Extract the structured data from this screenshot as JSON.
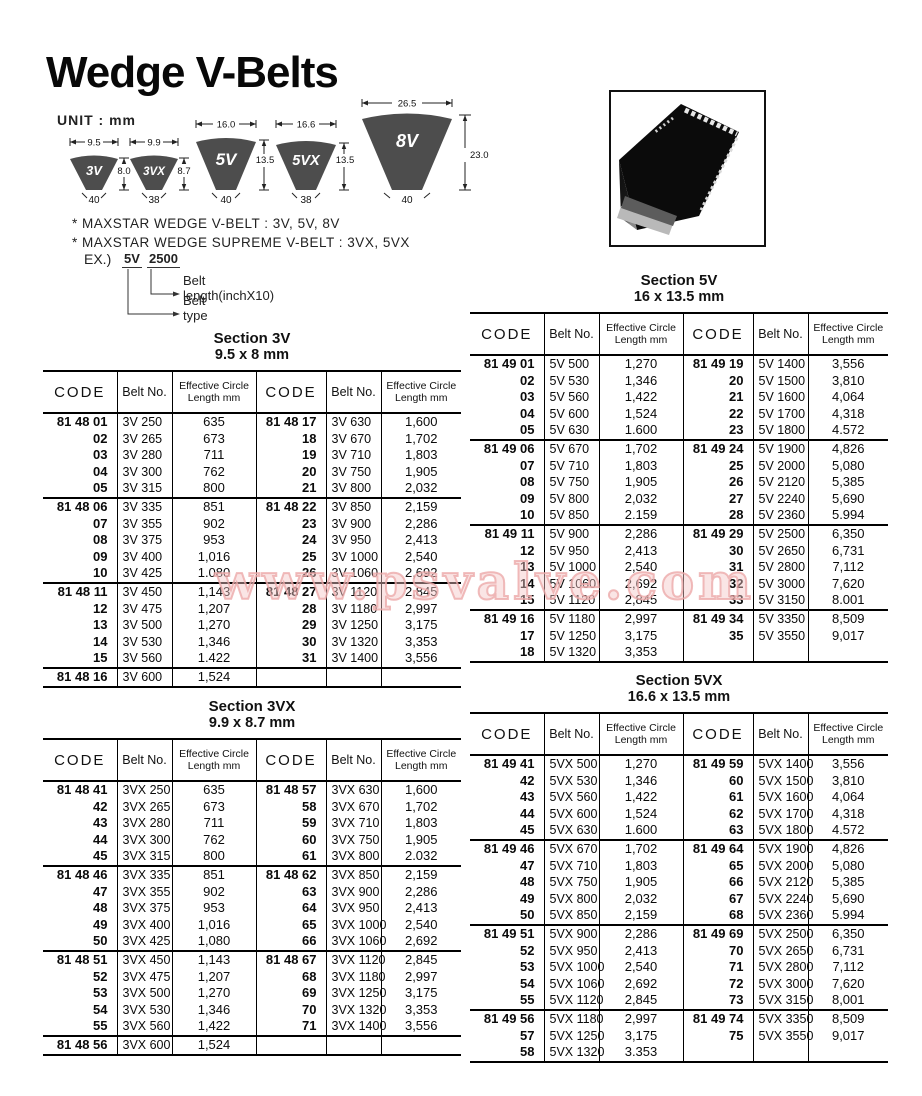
{
  "page": {
    "title": "Wedge V-Belts",
    "unit_label": "UNIT : mm",
    "watermark": "www.psvalve.com"
  },
  "diagram": {
    "belts": [
      {
        "label": "3V",
        "top_width": "9.5",
        "height": "8.0",
        "angle": "40"
      },
      {
        "label": "3VX",
        "top_width": "9.9",
        "height": "8.7",
        "angle": "38"
      },
      {
        "label": "5V",
        "top_width": "16.0",
        "height": "13.5",
        "angle": "40"
      },
      {
        "label": "5VX",
        "top_width": "16.6",
        "height": "13.5",
        "angle": "38"
      },
      {
        "label": "8V",
        "top_width": "26.5",
        "height": "23.0",
        "angle": "40"
      }
    ]
  },
  "notes": [
    "* MAXSTAR WEDGE V-BELT : 3V, 5V, 8V",
    "* MAXSTAR WEDGE SUPREME V-BELT : 3VX, 5VX"
  ],
  "example": {
    "prefix": "EX.)",
    "belt_type": "5V",
    "belt_length": "2500",
    "length_label": "Belt length(inchX10)",
    "type_label": "Belt type"
  },
  "tables": [
    {
      "id": "3v",
      "title": "Section 3V",
      "subtitle": "9.5 x 8 mm",
      "headers": [
        "CODE",
        "Belt No.",
        "Effective Circle Length mm",
        "CODE",
        "Belt No.",
        "Effective Circle Length mm"
      ],
      "groups": [
        [
          [
            "81 48 01",
            "3V 250",
            "635",
            "81 48 17",
            "3V 630",
            "1,600"
          ],
          [
            "02",
            "3V 265",
            "673",
            "18",
            "3V 670",
            "1,702"
          ],
          [
            "03",
            "3V 280",
            "711",
            "19",
            "3V 710",
            "1,803"
          ],
          [
            "04",
            "3V 300",
            "762",
            "20",
            "3V 750",
            "1,905"
          ],
          [
            "05",
            "3V 315",
            "800",
            "21",
            "3V 800",
            "2,032"
          ]
        ],
        [
          [
            "81 48 06",
            "3V 335",
            "851",
            "81 48 22",
            "3V 850",
            "2,159"
          ],
          [
            "07",
            "3V 355",
            "902",
            "23",
            "3V 900",
            "2,286"
          ],
          [
            "08",
            "3V 375",
            "953",
            "24",
            "3V 950",
            "2,413"
          ],
          [
            "09",
            "3V 400",
            "1,016",
            "25",
            "3V 1000",
            "2,540"
          ],
          [
            "10",
            "3V 425",
            "1.080",
            "26",
            "3V 1060",
            "2,692"
          ]
        ],
        [
          [
            "81 48 11",
            "3V 450",
            "1,143",
            "81 48 27",
            "3V 1120",
            "2,845"
          ],
          [
            "12",
            "3V 475",
            "1,207",
            "28",
            "3V 1180",
            "2,997"
          ],
          [
            "13",
            "3V 500",
            "1,270",
            "29",
            "3V 1250",
            "3,175"
          ],
          [
            "14",
            "3V 530",
            "1,346",
            "30",
            "3V 1320",
            "3,353"
          ],
          [
            "15",
            "3V 560",
            "1.422",
            "31",
            "3V 1400",
            "3,556"
          ]
        ],
        [
          [
            "81 48 16",
            "3V 600",
            "1,524",
            "",
            "",
            ""
          ]
        ]
      ]
    },
    {
      "id": "5v",
      "title": "Section 5V",
      "subtitle": "16 x 13.5 mm",
      "headers": [
        "CODE",
        "Belt No.",
        "Effective Circle Length mm",
        "CODE",
        "Belt No.",
        "Effective Circle Length mm"
      ],
      "groups": [
        [
          [
            "81 49 01",
            "5V 500",
            "1,270",
            "81 49 19",
            "5V 1400",
            "3,556"
          ],
          [
            "02",
            "5V 530",
            "1,346",
            "20",
            "5V 1500",
            "3,810"
          ],
          [
            "03",
            "5V 560",
            "1,422",
            "21",
            "5V 1600",
            "4,064"
          ],
          [
            "04",
            "5V 600",
            "1,524",
            "22",
            "5V 1700",
            "4,318"
          ],
          [
            "05",
            "5V 630",
            "1.600",
            "23",
            "5V 1800",
            "4.572"
          ]
        ],
        [
          [
            "81 49 06",
            "5V 670",
            "1,702",
            "81 49 24",
            "5V 1900",
            "4,826"
          ],
          [
            "07",
            "5V 710",
            "1,803",
            "25",
            "5V 2000",
            "5,080"
          ],
          [
            "08",
            "5V 750",
            "1,905",
            "26",
            "5V 2120",
            "5,385"
          ],
          [
            "09",
            "5V 800",
            "2,032",
            "27",
            "5V 2240",
            "5,690"
          ],
          [
            "10",
            "5V 850",
            "2.159",
            "28",
            "5V 2360",
            "5.994"
          ]
        ],
        [
          [
            "81 49 11",
            "5V 900",
            "2,286",
            "81 49 29",
            "5V 2500",
            "6,350"
          ],
          [
            "12",
            "5V 950",
            "2,413",
            "30",
            "5V 2650",
            "6,731"
          ],
          [
            "13",
            "5V 1000",
            "2,540",
            "31",
            "5V 2800",
            "7,112"
          ],
          [
            "14",
            "5V 1060",
            "2,692",
            "32",
            "5V 3000",
            "7,620"
          ],
          [
            "15",
            "5V 1120",
            "2,845",
            "33",
            "5V 3150",
            "8.001"
          ]
        ],
        [
          [
            "81 49 16",
            "5V 1180",
            "2,997",
            "81 49 34",
            "5V 3350",
            "8,509"
          ],
          [
            "17",
            "5V 1250",
            "3,175",
            "35",
            "5V 3550",
            "9,017"
          ],
          [
            "18",
            "5V 1320",
            "3,353",
            "",
            "",
            ""
          ]
        ]
      ]
    },
    {
      "id": "3vx",
      "title": "Section 3VX",
      "subtitle": "9.9 x 8.7 mm",
      "headers": [
        "CODE",
        "Belt No.",
        "Effective Circle Length mm",
        "CODE",
        "Belt No.",
        "Effective Circle Length mm"
      ],
      "groups": [
        [
          [
            "81 48 41",
            "3VX 250",
            "635",
            "81 48 57",
            "3VX 630",
            "1,600"
          ],
          [
            "42",
            "3VX 265",
            "673",
            "58",
            "3VX 670",
            "1,702"
          ],
          [
            "43",
            "3VX 280",
            "711",
            "59",
            "3VX 710",
            "1,803"
          ],
          [
            "44",
            "3VX 300",
            "762",
            "60",
            "3VX 750",
            "1,905"
          ],
          [
            "45",
            "3VX 315",
            "800",
            "61",
            "3VX 800",
            "2.032"
          ]
        ],
        [
          [
            "81 48 46",
            "3VX 335",
            "851",
            "81 48 62",
            "3VX 850",
            "2,159"
          ],
          [
            "47",
            "3VX 355",
            "902",
            "63",
            "3VX 900",
            "2,286"
          ],
          [
            "48",
            "3VX 375",
            "953",
            "64",
            "3VX 950",
            "2,413"
          ],
          [
            "49",
            "3VX 400",
            "1,016",
            "65",
            "3VX 1000",
            "2,540"
          ],
          [
            "50",
            "3VX 425",
            "1,080",
            "66",
            "3VX 1060",
            "2,692"
          ]
        ],
        [
          [
            "81 48 51",
            "3VX 450",
            "1,143",
            "81 48 67",
            "3VX 1120",
            "2,845"
          ],
          [
            "52",
            "3VX 475",
            "1,207",
            "68",
            "3VX 1180",
            "2,997"
          ],
          [
            "53",
            "3VX 500",
            "1,270",
            "69",
            "3VX 1250",
            "3,175"
          ],
          [
            "54",
            "3VX 530",
            "1,346",
            "70",
            "3VX 1320",
            "3,353"
          ],
          [
            "55",
            "3VX 560",
            "1,422",
            "71",
            "3VX 1400",
            "3,556"
          ]
        ],
        [
          [
            "81 48 56",
            "3VX 600",
            "1,524",
            "",
            "",
            ""
          ]
        ]
      ]
    },
    {
      "id": "5vx",
      "title": "Section 5VX",
      "subtitle": "16.6 x 13.5 mm",
      "headers": [
        "CODE",
        "Belt No.",
        "Effective Circle Length mm",
        "CODE",
        "Belt No.",
        "Effective Circle Length mm"
      ],
      "groups": [
        [
          [
            "81 49 41",
            "5VX 500",
            "1,270",
            "81 49 59",
            "5VX 1400",
            "3,556"
          ],
          [
            "42",
            "5VX 530",
            "1,346",
            "60",
            "5VX 1500",
            "3,810"
          ],
          [
            "43",
            "5VX 560",
            "1,422",
            "61",
            "5VX 1600",
            "4,064"
          ],
          [
            "44",
            "5VX 600",
            "1,524",
            "62",
            "5VX 1700",
            "4,318"
          ],
          [
            "45",
            "5VX 630",
            "1.600",
            "63",
            "5VX 1800",
            "4.572"
          ]
        ],
        [
          [
            "81 49 46",
            "5VX 670",
            "1,702",
            "81 49 64",
            "5VX 1900",
            "4,826"
          ],
          [
            "47",
            "5VX 710",
            "1,803",
            "65",
            "5VX 2000",
            "5,080"
          ],
          [
            "48",
            "5VX 750",
            "1,905",
            "66",
            "5VX 2120",
            "5,385"
          ],
          [
            "49",
            "5VX 800",
            "2,032",
            "67",
            "5VX 2240",
            "5,690"
          ],
          [
            "50",
            "5VX 850",
            "2,159",
            "68",
            "5VX 2360",
            "5.994"
          ]
        ],
        [
          [
            "81 49 51",
            "5VX 900",
            "2,286",
            "81 49 69",
            "5VX 2500",
            "6,350"
          ],
          [
            "52",
            "5VX 950",
            "2,413",
            "70",
            "5VX 2650",
            "6,731"
          ],
          [
            "53",
            "5VX 1000",
            "2,540",
            "71",
            "5VX 2800",
            "7,112"
          ],
          [
            "54",
            "5VX 1060",
            "2,692",
            "72",
            "5VX 3000",
            "7,620"
          ],
          [
            "55",
            "5VX 1120",
            "2,845",
            "73",
            "5VX 3150",
            "8,001"
          ]
        ],
        [
          [
            "81 49 56",
            "5VX 1180",
            "2,997",
            "81 49 74",
            "5VX 3350",
            "8,509"
          ],
          [
            "57",
            "5VX 1250",
            "3,175",
            "75",
            "5VX 3550",
            "9,017"
          ],
          [
            "58",
            "5VX 1320",
            "3.353",
            "",
            "",
            ""
          ]
        ]
      ]
    }
  ]
}
